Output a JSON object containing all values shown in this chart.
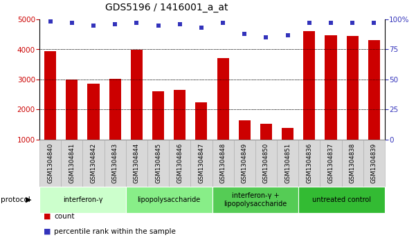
{
  "title": "GDS5196 / 1416001_a_at",
  "samples": [
    "GSM1304840",
    "GSM1304841",
    "GSM1304842",
    "GSM1304843",
    "GSM1304844",
    "GSM1304845",
    "GSM1304846",
    "GSM1304847",
    "GSM1304848",
    "GSM1304849",
    "GSM1304850",
    "GSM1304851",
    "GSM1304836",
    "GSM1304837",
    "GSM1304838",
    "GSM1304839"
  ],
  "bar_values": [
    3950,
    2990,
    2870,
    3020,
    3980,
    2620,
    2650,
    2230,
    3720,
    1650,
    1520,
    1380,
    4600,
    4480,
    4450,
    4320
  ],
  "dot_values": [
    98,
    97,
    95,
    96,
    97,
    95,
    96,
    93,
    97,
    88,
    85,
    87,
    97,
    97,
    97,
    97
  ],
  "bar_color": "#cc0000",
  "dot_color": "#3333bb",
  "ylim_left": [
    1000,
    5000
  ],
  "ylim_right": [
    0,
    100
  ],
  "yticks_left": [
    1000,
    2000,
    3000,
    4000,
    5000
  ],
  "yticks_right": [
    0,
    25,
    50,
    75,
    100
  ],
  "yticklabels_right": [
    "0",
    "25",
    "50",
    "75",
    "100%"
  ],
  "groups": [
    {
      "label": "interferon-γ",
      "start": 0,
      "end": 4,
      "color": "#ccffcc"
    },
    {
      "label": "lipopolysaccharide",
      "start": 4,
      "end": 8,
      "color": "#88ee88"
    },
    {
      "label": "interferon-γ +\nlipopolysaccharide",
      "start": 8,
      "end": 12,
      "color": "#55cc55"
    },
    {
      "label": "untreated control",
      "start": 12,
      "end": 16,
      "color": "#33bb33"
    }
  ],
  "protocol_label": "protocol",
  "legend_count_label": "count",
  "legend_percentile_label": "percentile rank within the sample",
  "background_color": "#ffffff",
  "label_area_color": "#d8d8d8",
  "title_fontsize": 10,
  "tick_fontsize": 7.5,
  "sample_fontsize": 6.2,
  "group_fontsize": 7,
  "legend_fontsize": 7.5
}
